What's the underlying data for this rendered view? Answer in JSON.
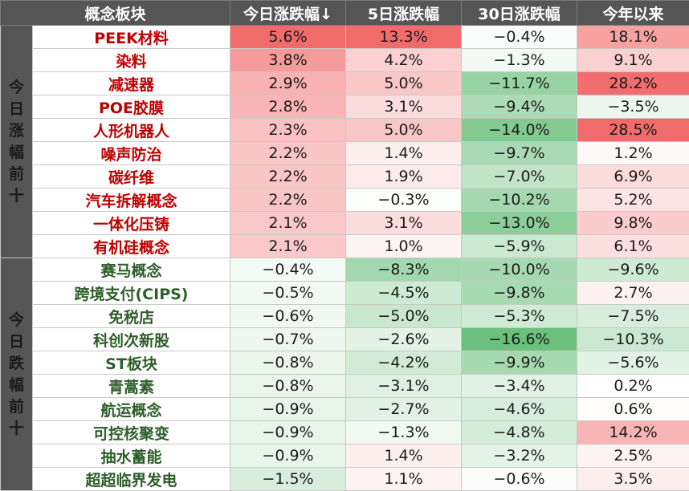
{
  "header": {
    "category_label": "概念板块",
    "day_change_label": "今日涨跌幅↓",
    "five_day_label": "5日涨跌幅",
    "thirty_day_label": "30日涨跌幅",
    "ytd_label": "今年以来"
  },
  "colors": {
    "header_bg": "#555555",
    "top_gainer_name": "#c00000",
    "top_loser_name": "#2e5e2a",
    "positive_max": "#f26b6b",
    "negative_max": "#6cc07d"
  },
  "top_gainers": {
    "label": "今日涨幅前十",
    "rows": [
      {
        "name": "PEEK材料",
        "today": "5.6%",
        "five_day": "13.3%",
        "thirty_day": "-0.4%",
        "ytd": "18.1%"
      },
      {
        "name": "染料",
        "today": "3.8%",
        "five_day": "4.2%",
        "thirty_day": "-1.3%",
        "ytd": "9.1%"
      },
      {
        "name": "减速器",
        "today": "2.9%",
        "five_day": "5.0%",
        "thirty_day": "-11.7%",
        "ytd": "28.2%"
      },
      {
        "name": "POE胶膜",
        "today": "2.8%",
        "five_day": "3.1%",
        "thirty_day": "-9.4%",
        "ytd": "-3.5%"
      },
      {
        "name": "人形机器人",
        "today": "2.3%",
        "five_day": "5.0%",
        "thirty_day": "-14.0%",
        "ytd": "28.5%"
      },
      {
        "name": "噪声防治",
        "today": "2.2%",
        "five_day": "1.4%",
        "thirty_day": "-9.7%",
        "ytd": "1.2%"
      },
      {
        "name": "碳纤维",
        "today": "2.2%",
        "five_day": "1.9%",
        "thirty_day": "-7.0%",
        "ytd": "6.9%"
      },
      {
        "name": "汽车拆解概念",
        "today": "2.2%",
        "five_day": "-0.3%",
        "thirty_day": "-10.2%",
        "ytd": "5.2%"
      },
      {
        "name": "一体化压铸",
        "today": "2.1%",
        "five_day": "3.1%",
        "thirty_day": "-13.0%",
        "ytd": "9.8%"
      },
      {
        "name": "有机硅概念",
        "today": "2.1%",
        "five_day": "1.0%",
        "thirty_day": "-5.9%",
        "ytd": "6.1%"
      }
    ]
  },
  "top_losers": {
    "label": "今日跌幅前十",
    "rows": [
      {
        "name": "赛马概念",
        "today": "-0.4%",
        "five_day": "-8.3%",
        "thirty_day": "-10.0%",
        "ytd": "-9.6%"
      },
      {
        "name": "跨境支付(CIPS)",
        "today": "-0.5%",
        "five_day": "-4.5%",
        "thirty_day": "-9.8%",
        "ytd": "2.7%"
      },
      {
        "name": "免税店",
        "today": "-0.6%",
        "five_day": "-5.0%",
        "thirty_day": "-5.3%",
        "ytd": "-7.5%"
      },
      {
        "name": "科创次新股",
        "today": "-0.7%",
        "five_day": "-2.6%",
        "thirty_day": "-16.6%",
        "ytd": "-10.3%"
      },
      {
        "name": "ST板块",
        "today": "-0.8%",
        "five_day": "-4.2%",
        "thirty_day": "-9.9%",
        "ytd": "-5.6%"
      },
      {
        "name": "青蒿素",
        "today": "-0.8%",
        "five_day": "-3.1%",
        "thirty_day": "-3.4%",
        "ytd": "0.2%"
      },
      {
        "name": "航运概念",
        "today": "-0.9%",
        "five_day": "-2.7%",
        "thirty_day": "-4.6%",
        "ytd": "0.6%"
      },
      {
        "name": "可控核聚变",
        "today": "-0.9%",
        "five_day": "-1.3%",
        "thirty_day": "-4.8%",
        "ytd": "14.2%"
      },
      {
        "name": "抽水蓄能",
        "today": "-0.9%",
        "five_day": "1.4%",
        "thirty_day": "-3.2%",
        "ytd": "2.5%"
      },
      {
        "name": "超超临界发电",
        "today": "-1.5%",
        "five_day": "1.1%",
        "thirty_day": "-0.6%",
        "ytd": "3.5%"
      }
    ]
  }
}
